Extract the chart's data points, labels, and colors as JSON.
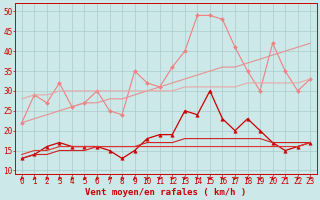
{
  "bg_color": "#cce8e8",
  "grid_color": "#aacccc",
  "x_labels": [
    0,
    1,
    2,
    3,
    4,
    5,
    6,
    7,
    8,
    9,
    10,
    11,
    12,
    13,
    14,
    15,
    16,
    17,
    18,
    19,
    20,
    21,
    22,
    23
  ],
  "xlabel": "Vent moyen/en rafales ( km/h )",
  "ylim": [
    9,
    52
  ],
  "yticks": [
    10,
    15,
    20,
    25,
    30,
    35,
    40,
    45,
    50
  ],
  "lines": [
    {
      "name": "rafales_max",
      "color": "#f08080",
      "linewidth": 0.8,
      "marker": "D",
      "markersize": 2.0,
      "data": [
        22,
        29,
        27,
        32,
        26,
        27,
        30,
        25,
        24,
        35,
        32,
        31,
        36,
        40,
        49,
        49,
        48,
        41,
        35,
        30,
        42,
        35,
        30,
        33
      ]
    },
    {
      "name": "rafales_trend1",
      "color": "#e89090",
      "linewidth": 0.8,
      "marker": null,
      "markersize": 0,
      "data": [
        22,
        23,
        24,
        25,
        26,
        27,
        27,
        28,
        28,
        29,
        30,
        31,
        32,
        33,
        34,
        35,
        36,
        36,
        37,
        38,
        39,
        40,
        41,
        42
      ]
    },
    {
      "name": "rafales_trend2",
      "color": "#e8a8a8",
      "linewidth": 0.8,
      "marker": null,
      "markersize": 0,
      "data": [
        28,
        29,
        29,
        30,
        30,
        30,
        30,
        30,
        30,
        30,
        30,
        30,
        30,
        31,
        31,
        31,
        31,
        31,
        32,
        32,
        32,
        32,
        32,
        33
      ]
    },
    {
      "name": "vent_moy",
      "color": "#cc0000",
      "linewidth": 0.9,
      "marker": "^",
      "markersize": 2.5,
      "data": [
        13,
        14,
        16,
        17,
        16,
        16,
        16,
        15,
        13,
        15,
        18,
        19,
        19,
        25,
        24,
        30,
        23,
        20,
        23,
        20,
        17,
        15,
        16,
        17
      ]
    },
    {
      "name": "vent_trend1",
      "color": "#cc2222",
      "linewidth": 0.8,
      "marker": null,
      "markersize": 0,
      "data": [
        13,
        14,
        14,
        15,
        15,
        15,
        16,
        16,
        16,
        16,
        17,
        17,
        17,
        18,
        18,
        18,
        18,
        18,
        18,
        18,
        17,
        17,
        17,
        17
      ]
    },
    {
      "name": "vent_trend2",
      "color": "#dd3333",
      "linewidth": 0.8,
      "marker": null,
      "markersize": 0,
      "data": [
        14,
        15,
        15,
        16,
        16,
        16,
        16,
        16,
        16,
        16,
        16,
        16,
        16,
        16,
        16,
        16,
        16,
        16,
        16,
        16,
        16,
        16,
        16,
        17
      ]
    }
  ],
  "tick_fontsize": 5.5,
  "axis_label_fontsize": 6.5,
  "spine_color": "#cc0000",
  "tick_color": "#cc0000",
  "label_color": "#cc0000"
}
